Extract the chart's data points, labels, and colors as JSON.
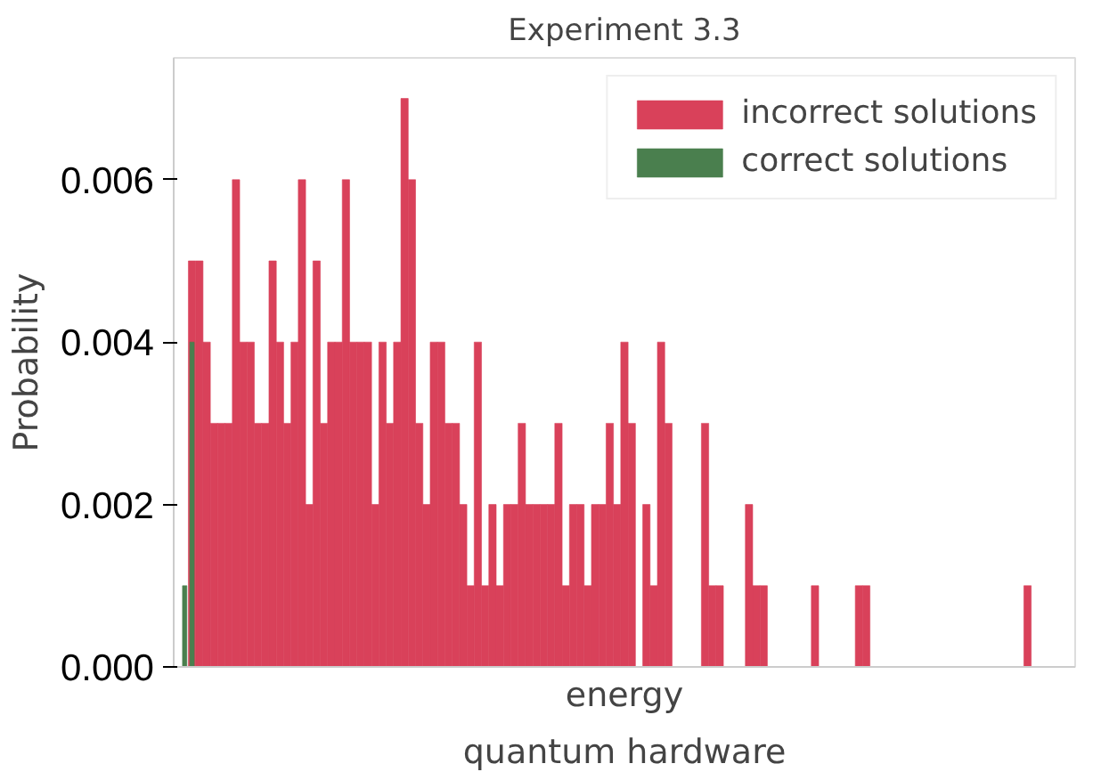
{
  "chart_data": {
    "type": "bar",
    "title": "Experiment 3.3",
    "xlabel": "energy",
    "ylabel": "Probability",
    "annotations": [
      "quantum hardware"
    ],
    "categories": [
      null,
      null,
      null,
      null,
      null,
      null,
      null,
      null,
      null,
      null,
      null,
      null,
      null,
      null,
      null,
      null,
      null,
      null,
      null,
      null,
      null,
      null,
      null,
      null,
      null,
      null,
      null,
      null,
      null,
      null,
      null,
      null,
      null,
      null,
      null,
      null,
      null,
      null,
      null,
      null,
      null,
      null,
      null,
      null,
      null,
      null,
      null,
      null,
      null,
      null,
      null,
      null,
      null,
      null,
      null,
      null,
      null,
      null,
      null,
      null,
      null,
      null,
      null,
      null,
      null,
      null,
      null,
      null,
      null,
      null,
      null,
      null,
      null,
      null,
      null,
      null,
      null,
      null,
      null,
      null,
      null,
      null,
      null,
      null,
      null,
      null,
      null,
      null,
      null,
      null,
      null,
      null,
      null,
      null,
      null,
      null,
      null,
      null,
      null,
      null,
      null,
      null,
      null,
      null,
      null,
      null,
      null,
      null,
      null,
      null,
      null,
      null,
      null,
      null,
      null,
      null,
      null,
      null,
      null,
      null,
      null,
      null,
      null
    ],
    "series": [
      {
        "name": "incorrect solutions",
        "color": "#d9415a",
        "values": [
          null,
          null,
          0.005,
          0.005,
          0.004,
          0.003,
          0.003,
          0.003,
          0.006,
          0.004,
          0.004,
          0.003,
          0.003,
          0.005,
          0.004,
          0.003,
          0.004,
          0.006,
          0.002,
          0.005,
          0.003,
          0.004,
          0.004,
          0.006,
          0.004,
          0.004,
          0.004,
          0.002,
          0.004,
          0.003,
          0.004,
          0.007,
          0.006,
          0.003,
          0.002,
          0.004,
          0.004,
          0.003,
          0.003,
          0.002,
          0.001,
          0.004,
          0.001,
          0.002,
          0.001,
          0.002,
          0.002,
          0.003,
          0.002,
          0.002,
          0.002,
          0.002,
          0.003,
          0.001,
          0.002,
          0.002,
          0.001,
          0.002,
          0.002,
          0.003,
          0.002,
          0.004,
          0.003,
          null,
          0.002,
          0.001,
          0.004,
          0.003,
          null,
          null,
          null,
          null,
          0.003,
          0.001,
          0.001,
          null,
          null,
          null,
          0.002,
          0.001,
          0.001,
          null,
          null,
          null,
          null,
          null,
          null,
          0.001,
          null,
          null,
          null,
          null,
          null,
          0.001,
          0.001,
          null,
          null,
          null,
          null,
          null,
          null,
          null,
          null,
          null,
          null,
          null,
          null,
          null,
          null,
          null,
          null,
          null,
          null,
          null,
          null,
          null,
          0.001,
          null,
          null,
          null,
          null,
          null,
          null
        ]
      },
      {
        "name": "correct solutions",
        "color": "#4a7f4e",
        "values": [
          null,
          0.001,
          0.004,
          null,
          null,
          null,
          null,
          null,
          null,
          null,
          null,
          null,
          null,
          null,
          null,
          null,
          null,
          null,
          null,
          null,
          null,
          null,
          null,
          null,
          null,
          null,
          null,
          null,
          null,
          null,
          null,
          null,
          null,
          null,
          null,
          null,
          null,
          null,
          null,
          null,
          null,
          null,
          null,
          null,
          null,
          null,
          null,
          null,
          null,
          null,
          null,
          null,
          null,
          null,
          null,
          null,
          null,
          null,
          null,
          null,
          null,
          null,
          null,
          null,
          null,
          null,
          null,
          null,
          null,
          null,
          null,
          null,
          null,
          null,
          null,
          null,
          null,
          null,
          null,
          null,
          null,
          null,
          null,
          null,
          null,
          null,
          null,
          null,
          null,
          null,
          null,
          null,
          null,
          null,
          null,
          null,
          null,
          null,
          null,
          null,
          null,
          null,
          null,
          null,
          null,
          null,
          null,
          null,
          null,
          null,
          null,
          null,
          null,
          null,
          null,
          null,
          null,
          null,
          null,
          null,
          null,
          null,
          null
        ]
      }
    ],
    "ylim": [
      0,
      0.0075
    ],
    "yticks": [
      {
        "value": 0,
        "label": "0.000"
      },
      {
        "value": 0.002,
        "label": "0.002"
      },
      {
        "value": 0.004,
        "label": "0.004"
      },
      {
        "value": 0.006,
        "label": "0.006"
      }
    ],
    "tick_labels": "y",
    "legend": "top right"
  }
}
